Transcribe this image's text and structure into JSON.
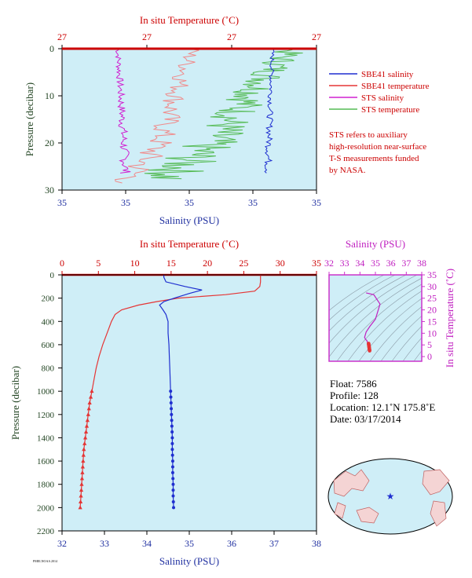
{
  "colors": {
    "panel_bg": "#cfeef7",
    "sbe_salinity": "#1f2fd0",
    "sbe_temperature": "#e53535",
    "sts_salinity": "#d020d0",
    "sts_temperature": "#55bb55",
    "sts_temperature_pink": "#f08a8a",
    "red_text": "#cc0000",
    "blue_text": "#1f2fa0",
    "green_text": "#224422",
    "magenta_text": "#c020c0"
  },
  "top_panel": {
    "title": "In situ Temperature (˚C)",
    "ylabel": "Pressure (decibar)",
    "xlabel": "Salinity (PSU)",
    "top_ticks": [
      "27",
      "27",
      "27",
      "27"
    ],
    "bottom_ticks": [
      "35",
      "35",
      "35",
      "35",
      "35"
    ],
    "left_ticks": [
      "0",
      "10",
      "20",
      "30"
    ]
  },
  "legend": {
    "items": [
      {
        "label": "SBE41 salinity",
        "color": "#1f2fd0"
      },
      {
        "label": "SBE41 temperature",
        "color": "#e53535"
      },
      {
        "label": "STS salinity",
        "color": "#d020d0"
      },
      {
        "label": "STS temperature",
        "color": "#55bb55"
      }
    ],
    "note": [
      "STS refers to auxiliary",
      "high-resolution near-surface",
      "T-S measurements funded",
      "by NASA."
    ]
  },
  "main_panel": {
    "title": "In situ Temperature (˚C)",
    "ylabel": "Pressure (decibar)",
    "xlabel": "Salinity (PSU)",
    "top_ticks": [
      "0",
      "5",
      "10",
      "15",
      "20",
      "25",
      "30",
      "35"
    ],
    "bottom_ticks": [
      "32",
      "33",
      "34",
      "35",
      "36",
      "37",
      "38"
    ],
    "left_ticks": [
      "0",
      "200",
      "400",
      "600",
      "800",
      "1000",
      "1200",
      "1400",
      "1600",
      "1800",
      "2000",
      "2200"
    ]
  },
  "ts_panel": {
    "title": "Salinity (PSU)",
    "ylabel": "In situ Temperature (˚C)",
    "top_ticks": [
      "32",
      "33",
      "34",
      "35",
      "36",
      "37",
      "38"
    ],
    "right_ticks": [
      "0",
      "5",
      "10",
      "15",
      "20",
      "25",
      "30",
      "35"
    ]
  },
  "float_info": {
    "float": "Float:  7586",
    "profile": "Profile:  128",
    "location": "Location:  12.1˚N  175.8˚E",
    "date": "Date:  03/17/2014"
  },
  "footer_text": "PMELNOAA 2014",
  "chart_data": [
    {
      "type": "line",
      "title": "In situ Temperature (˚C)",
      "xlabel": "Salinity (PSU)",
      "ylabel": "Pressure (decibar)",
      "ylim": [
        0,
        2200
      ],
      "xlim_salinity": [
        32,
        38
      ],
      "xlim_temperature": [
        0,
        35
      ],
      "series": [
        {
          "name": "SBE41 temperature",
          "axis": "temperature",
          "pressure": [
            0,
            20,
            60,
            100,
            140,
            170,
            200,
            230,
            260,
            300,
            340,
            400,
            500,
            600,
            700,
            800,
            900,
            1000,
            1100,
            1200,
            1300,
            1400,
            1500,
            1600,
            1700,
            1800,
            1900,
            2000
          ],
          "values": [
            27.3,
            27.3,
            27.3,
            27.2,
            26.5,
            22.5,
            16.0,
            13.0,
            10.5,
            8.2,
            7.3,
            6.8,
            6.2,
            5.6,
            5.1,
            4.7,
            4.4,
            4.1,
            3.8,
            3.6,
            3.4,
            3.2,
            3.0,
            2.9,
            2.8,
            2.7,
            2.6,
            2.5
          ],
          "markers_from_pressure": 1000
        },
        {
          "name": "SBE41 salinity",
          "axis": "salinity",
          "pressure": [
            0,
            20,
            60,
            100,
            130,
            160,
            200,
            230,
            260,
            300,
            340,
            400,
            500,
            600,
            700,
            800,
            900,
            1000,
            1100,
            1200,
            1300,
            1400,
            1500,
            1600,
            1700,
            1800,
            1900,
            2000
          ],
          "values": [
            34.4,
            34.4,
            34.45,
            34.9,
            35.3,
            35.0,
            34.65,
            34.4,
            34.3,
            34.38,
            34.45,
            34.5,
            34.5,
            34.52,
            34.53,
            34.54,
            34.55,
            34.56,
            34.57,
            34.58,
            34.59,
            34.6,
            34.6,
            34.61,
            34.61,
            34.62,
            34.62,
            34.63
          ],
          "markers_from_pressure": 1000
        }
      ]
    },
    {
      "type": "scatter",
      "title": "Salinity (PSU)",
      "xlabel": "Salinity (PSU)",
      "ylabel": "In situ Temperature (˚C)",
      "xlim": [
        32,
        38
      ],
      "ylim": [
        -2,
        35
      ],
      "series": [
        {
          "name": "T-S curve",
          "salinity": [
            34.4,
            34.45,
            34.9,
            35.3,
            35.0,
            34.65,
            34.4,
            34.3,
            34.38,
            34.45,
            34.5,
            34.53,
            34.56,
            34.6,
            34.63
          ],
          "temperature": [
            27.3,
            27.2,
            26.5,
            22.5,
            16.0,
            13.0,
            10.5,
            8.2,
            7.3,
            6.8,
            5.6,
            4.7,
            4.1,
            3.2,
            2.5
          ]
        }
      ]
    }
  ]
}
